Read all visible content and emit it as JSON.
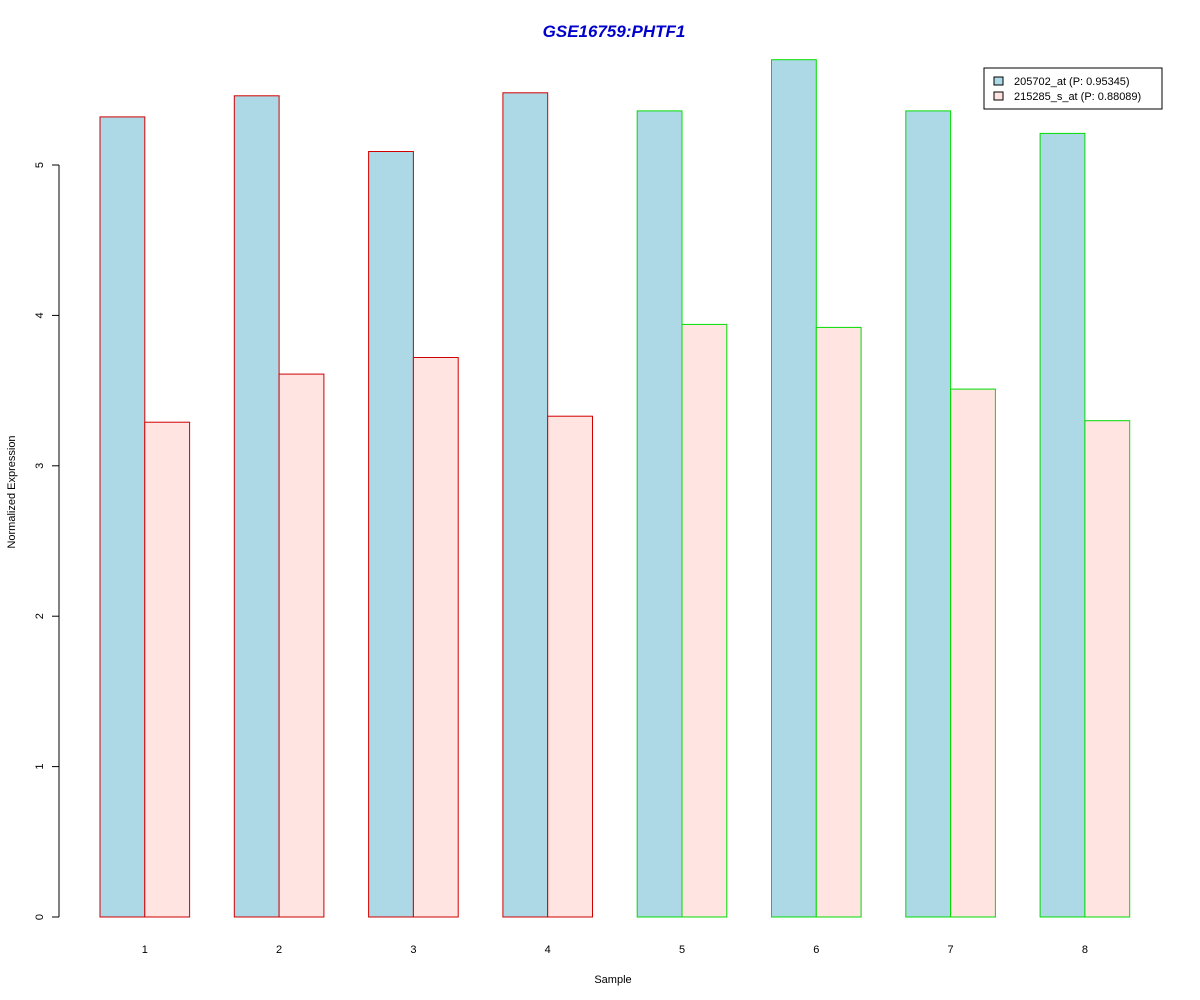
{
  "colors": {
    "title": "#0000cc",
    "series_fill": [
      "#add8e6",
      "#ffe4e1"
    ],
    "group_border": [
      "#d00000",
      "#00dd00"
    ]
  },
  "chart_data": {
    "type": "bar",
    "title": "GSE16759:PHTF1",
    "xlabel": "Sample",
    "ylabel": "Normalized Expression",
    "categories": [
      "1",
      "2",
      "3",
      "4",
      "5",
      "6",
      "7",
      "8"
    ],
    "ylim": [
      0,
      5.7
    ],
    "yticks": [
      0,
      1,
      2,
      3,
      4,
      5
    ],
    "grid": false,
    "legend_position": "top-right",
    "bar_border_group": [
      0,
      0,
      0,
      0,
      1,
      1,
      1,
      1
    ],
    "series": [
      {
        "name": "205702_at (P: 0.95345)",
        "values": [
          5.32,
          5.46,
          5.09,
          5.48,
          5.36,
          5.7,
          5.36,
          5.21
        ]
      },
      {
        "name": "215285_s_at (P: 0.88089)",
        "values": [
          3.29,
          3.61,
          3.72,
          3.33,
          3.94,
          3.92,
          3.51,
          3.3
        ]
      }
    ]
  }
}
